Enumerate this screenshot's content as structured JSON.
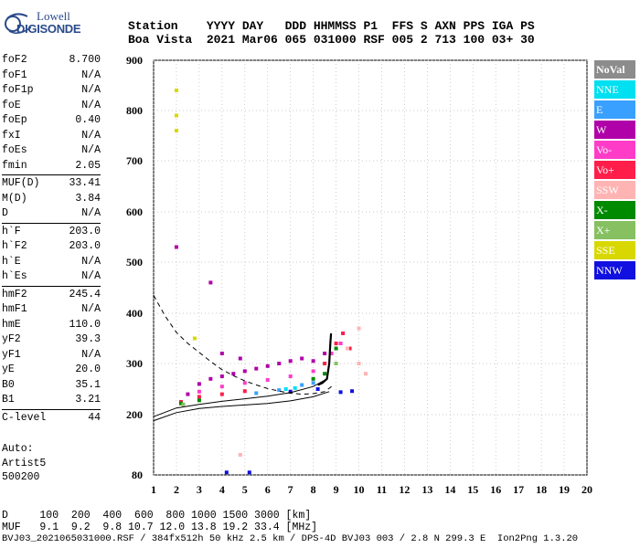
{
  "logo": {
    "line1": "Lowell",
    "line2": "DIGISONDE"
  },
  "header": {
    "row1": "Station    YYYY DAY   DDD HHMMSS P1  FFS S AXN PPS IGA PS",
    "row2": "Boa Vista  2021 Mar06 065 031000 RSF 005 2 713 100 03+ 30"
  },
  "params_groups": [
    [
      {
        "k": "foF2",
        "v": "8.700"
      },
      {
        "k": "foF1",
        "v": "N/A"
      },
      {
        "k": "foF1p",
        "v": "N/A"
      },
      {
        "k": "foE",
        "v": "N/A"
      },
      {
        "k": "foEp",
        "v": "0.40"
      },
      {
        "k": "fxI",
        "v": "N/A"
      },
      {
        "k": "foEs",
        "v": "N/A"
      },
      {
        "k": "fmin",
        "v": "2.05"
      }
    ],
    [
      {
        "k": "MUF(D)",
        "v": "33.41"
      },
      {
        "k": "M(D)",
        "v": "3.84"
      },
      {
        "k": "D",
        "v": "N/A"
      }
    ],
    [
      {
        "k": "h`F",
        "v": "203.0"
      },
      {
        "k": "h`F2",
        "v": "203.0"
      },
      {
        "k": "h`E",
        "v": "N/A"
      },
      {
        "k": "h`Es",
        "v": "N/A"
      }
    ],
    [
      {
        "k": "hmF2",
        "v": "245.4"
      },
      {
        "k": "hmF1",
        "v": "N/A"
      },
      {
        "k": "hmE",
        "v": "110.0"
      },
      {
        "k": "yF2",
        "v": "39.3"
      },
      {
        "k": "yF1",
        "v": "N/A"
      },
      {
        "k": "yE",
        "v": "20.0"
      },
      {
        "k": "B0",
        "v": "35.1"
      },
      {
        "k": "B1",
        "v": "3.21"
      }
    ],
    [
      {
        "k": "C-level",
        "v": "44"
      }
    ]
  ],
  "auto": {
    "line1": "Auto:",
    "line2": "Artist5",
    "line3": "500200"
  },
  "legend": [
    {
      "label": "NoVal",
      "color": "#8c8c8c"
    },
    {
      "label": "NNE",
      "color": "#00e0f0"
    },
    {
      "label": "E",
      "color": "#3aa0ff"
    },
    {
      "label": "W",
      "color": "#b000a8"
    },
    {
      "label": "Vo-",
      "color": "#ff3cc8"
    },
    {
      "label": "Vo+",
      "color": "#ff1e4a"
    },
    {
      "label": "SSW",
      "color": "#ffb4b4"
    },
    {
      "label": "X-",
      "color": "#008a00"
    },
    {
      "label": "X+",
      "color": "#86c060"
    },
    {
      "label": "SSE",
      "color": "#d8d800"
    },
    {
      "label": "NNW",
      "color": "#1010e0"
    }
  ],
  "footer": {
    "line1": "D     100  200  400  600  800 1000 1500 3000 [km]",
    "line2": "MUF   9.1  9.2  9.8 10.7 12.0 13.8 19.2 33.4 [MHz]",
    "line3": "BVJ03_2021065031000.RSF / 384fx512h 50 kHz 2.5 km / DPS-4D BVJ03 003 / 2.8 N 299.3 E  Ion2Png 1.3.20"
  },
  "chart_data": {
    "type": "scatter",
    "title": "",
    "xlabel": "",
    "ylabel": "",
    "xlim": [
      1,
      20
    ],
    "ylim": [
      80,
      900
    ],
    "x_ticks": [
      1,
      2,
      3,
      4,
      5,
      6,
      7,
      8,
      9,
      10,
      11,
      12,
      13,
      14,
      15,
      16,
      17,
      18,
      19,
      20
    ],
    "y_ticks": [
      80,
      200,
      300,
      400,
      500,
      600,
      700,
      800,
      900
    ],
    "grid": "dotted",
    "legend_position": "right",
    "series": [
      {
        "name": "NoVal",
        "points": []
      },
      {
        "name": "NNE",
        "points": [
          [
            6.8,
            250
          ],
          [
            7.2,
            252
          ]
        ]
      },
      {
        "name": "E",
        "points": [
          [
            5.5,
            242
          ],
          [
            6.5,
            248
          ],
          [
            7.5,
            258
          ],
          [
            8.0,
            262
          ]
        ]
      },
      {
        "name": "W",
        "points": [
          [
            2.5,
            240
          ],
          [
            3.0,
            260
          ],
          [
            3.5,
            270
          ],
          [
            4.0,
            275
          ],
          [
            4.5,
            280
          ],
          [
            5.0,
            285
          ],
          [
            5.5,
            290
          ],
          [
            6.0,
            295
          ],
          [
            6.5,
            300
          ],
          [
            7.0,
            305
          ],
          [
            7.5,
            310
          ],
          [
            8.0,
            305
          ],
          [
            2.0,
            530
          ],
          [
            3.5,
            460
          ],
          [
            4.0,
            320
          ],
          [
            4.8,
            310
          ],
          [
            8.5,
            320
          ]
        ]
      },
      {
        "name": "Vo-",
        "points": [
          [
            3.0,
            245
          ],
          [
            4.0,
            255
          ],
          [
            5.0,
            262
          ],
          [
            6.0,
            268
          ],
          [
            7.0,
            275
          ],
          [
            8.0,
            285
          ],
          [
            8.8,
            320
          ],
          [
            9.2,
            340
          ]
        ]
      },
      {
        "name": "Vo+",
        "points": [
          [
            2.2,
            225
          ],
          [
            3.0,
            235
          ],
          [
            4.0,
            240
          ],
          [
            5.0,
            246
          ],
          [
            8.5,
            300
          ],
          [
            9.0,
            340
          ],
          [
            9.3,
            360
          ],
          [
            9.6,
            330
          ]
        ]
      },
      {
        "name": "SSW",
        "points": [
          [
            9.5,
            330
          ],
          [
            10.0,
            300
          ],
          [
            10.3,
            280
          ],
          [
            10.0,
            370
          ],
          [
            4.8,
            120
          ]
        ]
      },
      {
        "name": "X-",
        "points": [
          [
            2.2,
            222
          ],
          [
            3.0,
            228
          ],
          [
            8.0,
            270
          ],
          [
            8.5,
            280
          ],
          [
            9.0,
            330
          ]
        ]
      },
      {
        "name": "X+",
        "points": [
          [
            2.3,
            220
          ],
          [
            9.0,
            300
          ]
        ]
      },
      {
        "name": "SSE",
        "points": [
          [
            2.0,
            840
          ],
          [
            2.0,
            790
          ],
          [
            2.0,
            760
          ],
          [
            2.8,
            350
          ]
        ]
      },
      {
        "name": "NNW",
        "points": [
          [
            7.0,
            245
          ],
          [
            8.2,
            250
          ],
          [
            9.2,
            244
          ],
          [
            9.7,
            246
          ],
          [
            4.2,
            85
          ],
          [
            5.2,
            85
          ]
        ]
      }
    ],
    "curves": [
      {
        "style": "solid",
        "points": [
          [
            1,
            188
          ],
          [
            2,
            204
          ],
          [
            3,
            212
          ],
          [
            4,
            216
          ],
          [
            5,
            219
          ],
          [
            6,
            222
          ],
          [
            7,
            227
          ],
          [
            8,
            235
          ],
          [
            8.7,
            245
          ]
        ]
      },
      {
        "style": "solid",
        "points": [
          [
            1,
            196
          ],
          [
            2,
            213
          ],
          [
            3,
            220
          ],
          [
            4,
            226
          ],
          [
            5,
            231
          ],
          [
            6,
            236
          ],
          [
            7,
            243
          ],
          [
            8,
            255
          ],
          [
            8.6,
            270
          ]
        ]
      },
      {
        "style": "dashed",
        "points": [
          [
            1,
            435
          ],
          [
            1.5,
            395
          ],
          [
            2,
            362
          ],
          [
            2.5,
            340
          ],
          [
            3,
            322
          ],
          [
            3.5,
            304
          ],
          [
            4,
            288
          ],
          [
            4.5,
            276
          ],
          [
            5,
            266
          ],
          [
            5.5,
            258
          ],
          [
            6,
            251
          ],
          [
            6.5,
            246
          ],
          [
            7,
            242
          ],
          [
            7.5,
            240
          ],
          [
            8,
            241
          ],
          [
            8.5,
            245
          ],
          [
            8.8,
            255
          ]
        ]
      },
      {
        "style": "bold",
        "points": [
          [
            8.2,
            258
          ],
          [
            8.4,
            262
          ],
          [
            8.6,
            270
          ],
          [
            8.7,
            300
          ],
          [
            8.75,
            340
          ],
          [
            8.78,
            360
          ]
        ]
      }
    ]
  }
}
